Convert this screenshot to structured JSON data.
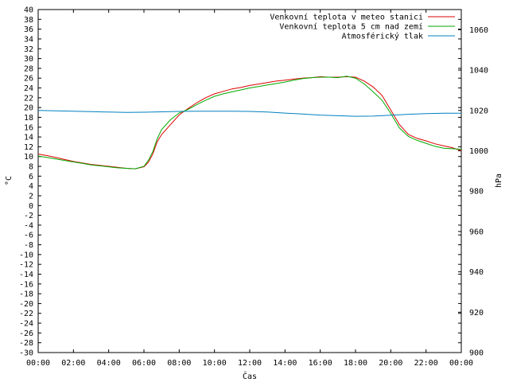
{
  "chart_data": {
    "type": "line",
    "title": "",
    "xlabel": "Čas",
    "ylabel_left": "°C",
    "ylabel_right": "hPa",
    "x_ticks": [
      "00:00",
      "02:00",
      "04:00",
      "06:00",
      "08:00",
      "10:00",
      "12:00",
      "14:00",
      "16:00",
      "18:00",
      "20:00",
      "22:00",
      "00:00"
    ],
    "x_range_hours": [
      0,
      24
    ],
    "ylim_left": [
      -30,
      40
    ],
    "ylim_right": [
      900,
      1070
    ],
    "y_ticks_left": [
      40,
      38,
      36,
      34,
      32,
      30,
      28,
      26,
      24,
      22,
      20,
      18,
      16,
      14,
      12,
      10,
      8,
      6,
      4,
      2,
      0,
      -2,
      -4,
      -6,
      -8,
      -10,
      -12,
      -14,
      -16,
      -18,
      -20,
      -22,
      -24,
      -26,
      -28,
      -30
    ],
    "y_ticks_right": [
      1060,
      1040,
      1020,
      1000,
      980,
      960,
      940,
      920,
      900
    ],
    "legend_position": "top-right",
    "series": [
      {
        "name": "Venkovní teplota v meteo stanici",
        "color": "#dd0000",
        "axis": "left",
        "x": [
          0,
          0.5,
          1,
          1.5,
          2,
          2.5,
          3,
          3.5,
          4,
          4.5,
          5,
          5.5,
          6,
          6.25,
          6.5,
          6.75,
          7,
          7.5,
          8,
          8.5,
          9,
          9.5,
          10,
          10.5,
          11,
          11.5,
          12,
          12.5,
          13,
          13.5,
          14,
          14.5,
          15,
          15.5,
          16,
          16.5,
          17,
          17.5,
          18,
          18.5,
          19,
          19.5,
          20,
          20.5,
          21,
          21.5,
          22,
          22.5,
          23,
          23.5,
          24
        ],
        "values": [
          10.5,
          10.2,
          9.8,
          9.4,
          9.0,
          8.7,
          8.4,
          8.2,
          8.0,
          7.8,
          7.6,
          7.5,
          7.9,
          8.8,
          10.5,
          13.0,
          14.5,
          16.5,
          18.5,
          19.8,
          21.0,
          22.0,
          22.8,
          23.3,
          23.8,
          24.1,
          24.5,
          24.8,
          25.1,
          25.4,
          25.6,
          25.8,
          26.0,
          26.1,
          26.3,
          26.2,
          26.2,
          26.3,
          26.2,
          25.4,
          24.2,
          22.5,
          19.5,
          16.5,
          14.5,
          13.7,
          13.2,
          12.6,
          12.2,
          11.8,
          11.2
        ]
      },
      {
        "name": "Venkovní teplota 5 cm nad zemí",
        "color": "#00aa00",
        "axis": "left",
        "x": [
          0,
          0.5,
          1,
          1.5,
          2,
          2.5,
          3,
          3.5,
          4,
          4.5,
          5,
          5.5,
          6,
          6.25,
          6.5,
          6.75,
          7,
          7.5,
          8,
          8.5,
          9,
          9.5,
          10,
          10.5,
          11,
          11.5,
          12,
          12.5,
          13,
          13.5,
          14,
          14.5,
          15,
          15.5,
          16,
          16.5,
          17,
          17.5,
          18,
          18.5,
          19,
          19.5,
          20,
          20.5,
          21,
          21.5,
          22,
          22.5,
          23,
          23.5,
          24
        ],
        "values": [
          10.1,
          9.8,
          9.5,
          9.2,
          8.9,
          8.6,
          8.3,
          8.1,
          7.9,
          7.7,
          7.6,
          7.5,
          8.0,
          9.2,
          11.0,
          13.6,
          15.5,
          17.5,
          18.9,
          19.6,
          20.6,
          21.5,
          22.3,
          22.8,
          23.2,
          23.6,
          24.0,
          24.3,
          24.6,
          24.9,
          25.2,
          25.6,
          25.9,
          26.1,
          26.2,
          26.2,
          26.1,
          26.4,
          26.0,
          24.8,
          23.2,
          21.5,
          18.8,
          15.8,
          14.1,
          13.3,
          12.7,
          12.1,
          11.7,
          11.6,
          11.5
        ]
      },
      {
        "name": "Atmosférický tlak",
        "color": "#0080c0",
        "axis": "right",
        "x": [
          0,
          1,
          2,
          3,
          4,
          5,
          6,
          7,
          8,
          9,
          10,
          11,
          12,
          13,
          14,
          15,
          16,
          17,
          18,
          19,
          20,
          21,
          22,
          23,
          24
        ],
        "values": [
          1020.0,
          1019.8,
          1019.6,
          1019.4,
          1019.2,
          1019.0,
          1019.1,
          1019.3,
          1019.5,
          1019.6,
          1019.6,
          1019.6,
          1019.5,
          1019.2,
          1018.7,
          1018.2,
          1017.7,
          1017.4,
          1017.1,
          1017.2,
          1017.6,
          1018.1,
          1018.4,
          1018.6,
          1018.6
        ]
      }
    ]
  }
}
